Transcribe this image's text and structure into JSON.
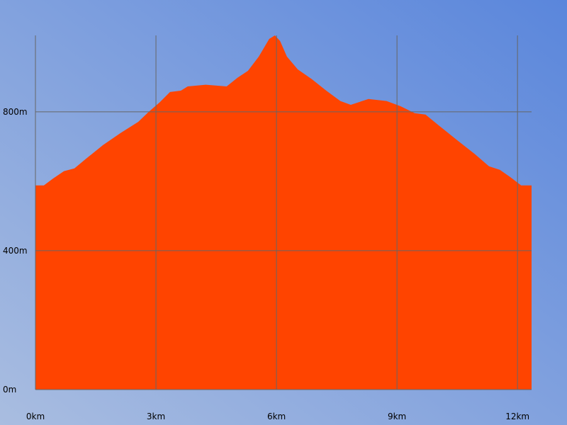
{
  "chart_data": {
    "type": "area",
    "color": "#ff4400",
    "grid": true,
    "x": [
      0,
      0.21,
      0.44,
      0.71,
      0.97,
      1.24,
      1.68,
      2.12,
      2.56,
      2.82,
      3.09,
      3.35,
      3.62,
      3.79,
      4.24,
      4.76,
      5.03,
      5.29,
      5.56,
      5.82,
      5.96,
      6.09,
      6.26,
      6.53,
      6.88,
      7.24,
      7.59,
      7.85,
      8.29,
      8.74,
      9.09,
      9.44,
      9.71,
      10.06,
      10.5,
      10.94,
      11.29,
      11.56,
      11.82,
      12.09,
      12.35
    ],
    "values": [
      588,
      588,
      608,
      629,
      637,
      663,
      704,
      739,
      771,
      800,
      827,
      857,
      861,
      873,
      878,
      873,
      898,
      918,
      959,
      1010,
      1020,
      1004,
      959,
      922,
      894,
      861,
      831,
      820,
      837,
      831,
      816,
      796,
      792,
      759,
      718,
      678,
      643,
      633,
      612,
      588,
      588
    ],
    "xlim": [
      0,
      12.35
    ],
    "ylim": [
      0,
      1020
    ],
    "xticks": [
      {
        "value": 0,
        "label": "0km"
      },
      {
        "value": 3,
        "label": "3km"
      },
      {
        "value": 6,
        "label": "6km"
      },
      {
        "value": 9,
        "label": "9km"
      },
      {
        "value": 12,
        "label": "12km"
      }
    ],
    "yticks": [
      {
        "value": 0,
        "label": "0m"
      },
      {
        "value": 400,
        "label": "400m"
      },
      {
        "value": 800,
        "label": "800m"
      }
    ]
  }
}
